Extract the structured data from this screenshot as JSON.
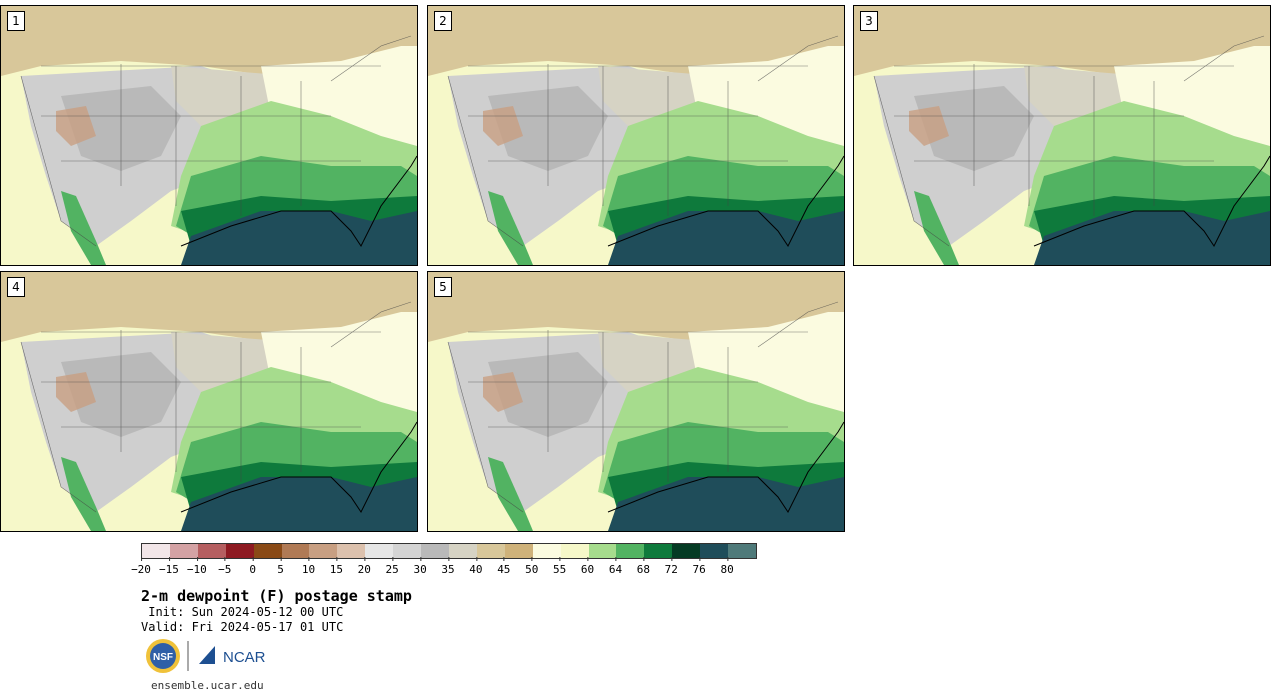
{
  "panels": [
    {
      "label": "1"
    },
    {
      "label": "2"
    },
    {
      "label": "3"
    },
    {
      "label": "4"
    },
    {
      "label": "5"
    }
  ],
  "colorbar": {
    "colors": [
      "#f2e6e8",
      "#d4a2a4",
      "#b55e60",
      "#8e1a22",
      "#8a4a16",
      "#b07a55",
      "#c89f82",
      "#dcc1ad",
      "#e6e6e6",
      "#d4d4d4",
      "#b9b9b9",
      "#d6d3c4",
      "#d8c79a",
      "#cfb27a",
      "#fbfbe0",
      "#f6f8c9",
      "#a6dc8d",
      "#52b362",
      "#0e7a3c",
      "#053b24",
      "#1f4d5a",
      "#4f7a7a"
    ],
    "tick_labels": [
      "−20",
      "−15",
      "−10",
      "−5",
      "0",
      "5",
      "10",
      "15",
      "20",
      "25",
      "30",
      "35",
      "40",
      "45",
      "50",
      "55",
      "60",
      "64",
      "68",
      "72",
      "76",
      "80"
    ]
  },
  "title": "2-m dewpoint (F) postage stamp",
  "init": " Init: Sun 2024-05-12 00 UTC",
  "valid": "Valid: Fri 2024-05-17 01 UTC",
  "logos": {
    "nsf": "NSF",
    "ncar": "NCAR"
  },
  "url": "ensemble.ucar.edu"
}
